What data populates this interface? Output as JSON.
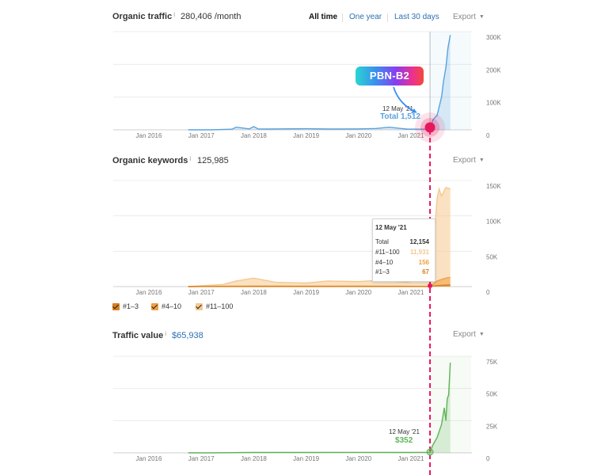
{
  "range_selector": {
    "all_time": "All time",
    "one_year": "One year",
    "last_30_days": "Last 30 days"
  },
  "export_label": "Export",
  "annotation": {
    "label": "PBN-B2",
    "colors": {
      "marker": "#e8165c",
      "dashed_line": "#e8165c"
    }
  },
  "organic_traffic": {
    "title": "Organic traffic",
    "info": "i",
    "value": "280,406 /month",
    "tooltip_date": "12 May '21",
    "tooltip_text": "Total 1,512"
  },
  "organic_keywords": {
    "title": "Organic keywords",
    "info": "i",
    "value": "125,985",
    "tooltip": {
      "date": "12 May '21",
      "rows": [
        {
          "label": "Total",
          "value": "12,154",
          "color": "#333333"
        },
        {
          "label": "#11–100",
          "value": "11,931",
          "color": "#f5c88f"
        },
        {
          "label": "#4–10",
          "value": "156",
          "color": "#f0a040"
        },
        {
          "label": "#1–3",
          "value": "67",
          "color": "#d8801e"
        }
      ]
    },
    "legend": [
      {
        "label": "#1–3",
        "color": "#d8801e"
      },
      {
        "label": "#4–10",
        "color": "#f0a040"
      },
      {
        "label": "#11–100",
        "color": "#f5c88f"
      }
    ]
  },
  "traffic_value": {
    "title": "Traffic value",
    "info": "i",
    "value": "$65,938",
    "tooltip_date": "12 May '21",
    "tooltip_value": "$352"
  },
  "chart_data": [
    {
      "type": "area",
      "x_ticks": [
        "Jan 2016",
        "Jan 2017",
        "Jan 2018",
        "Jan 2019",
        "Jan 2020",
        "Jan 2021"
      ],
      "y_ticks": [
        "300K",
        "200K",
        "100K",
        "0"
      ],
      "ylim": [
        0,
        300000
      ],
      "color": "#5aa2dd",
      "x": [
        "2016-10",
        "2017-03",
        "2017-08",
        "2017-09",
        "2017-12",
        "2018-01",
        "2018-02",
        "2018-04",
        "2018-07",
        "2019-01",
        "2019-07",
        "2020-01",
        "2020-05",
        "2020-08",
        "2020-12",
        "2021-03",
        "2021-05",
        "2021-05-12",
        "2021-06",
        "2021-07",
        "2021-08",
        "2021-08-15",
        "2021-09",
        "2021-09-15",
        "2021-10"
      ],
      "values": [
        0,
        0,
        2000,
        8000,
        3000,
        10000,
        3000,
        2500,
        3000,
        3500,
        2500,
        3000,
        4000,
        8000,
        2500,
        2000,
        2500,
        1512,
        30000,
        45000,
        100000,
        150000,
        190000,
        250000,
        290000
      ]
    },
    {
      "type": "area",
      "x_ticks": [
        "Jan 2016",
        "Jan 2017",
        "Jan 2018",
        "Jan 2019",
        "Jan 2020",
        "Jan 2021"
      ],
      "y_ticks": [
        "150K",
        "100K",
        "50K",
        "0"
      ],
      "ylim": [
        0,
        150000
      ],
      "series": [
        {
          "name": "#11–100",
          "color": "#f5c88f",
          "x": [
            "2016-10",
            "2017-06",
            "2017-09",
            "2018-01",
            "2018-06",
            "2019-01",
            "2019-06",
            "2020-01",
            "2020-06",
            "2020-12",
            "2021-05-12",
            "2021-06",
            "2021-07",
            "2021-07-15",
            "2021-08",
            "2021-09",
            "2021-10"
          ],
          "values": [
            0,
            3000,
            8000,
            12000,
            6000,
            5000,
            8000,
            7000,
            9000,
            6000,
            11931,
            45000,
            125000,
            138000,
            128000,
            140000,
            138000
          ]
        },
        {
          "name": "#4–10",
          "color": "#f0a040",
          "x": [
            "2016-10",
            "2017-06",
            "2018-01",
            "2019-01",
            "2020-01",
            "2020-12",
            "2021-05-12",
            "2021-07",
            "2021-09",
            "2021-10"
          ],
          "values": [
            0,
            500,
            800,
            600,
            700,
            500,
            156,
            8000,
            12000,
            13000
          ]
        },
        {
          "name": "#1–3",
          "color": "#d8801e",
          "x": [
            "2016-10",
            "2017-06",
            "2018-01",
            "2019-01",
            "2020-01",
            "2021-05-12",
            "2021-07",
            "2021-10"
          ],
          "values": [
            0,
            100,
            150,
            120,
            130,
            67,
            1500,
            2500
          ]
        }
      ]
    },
    {
      "type": "area",
      "x_ticks": [
        "Jan 2016",
        "Jan 2017",
        "Jan 2018",
        "Jan 2019",
        "Jan 2020",
        "Jan 2021"
      ],
      "y_ticks": [
        "75K",
        "50K",
        "25K",
        "0"
      ],
      "ylim": [
        0,
        75000
      ],
      "color": "#5fb35a",
      "x": [
        "2016-10",
        "2017-03",
        "2018-01",
        "2019-01",
        "2020-01",
        "2020-12",
        "2021-05-12",
        "2021-06",
        "2021-07",
        "2021-08",
        "2021-08-20",
        "2021-09",
        "2021-09-10",
        "2021-09-20",
        "2021-10"
      ],
      "values": [
        0,
        0,
        300,
        300,
        350,
        300,
        352,
        6000,
        12000,
        22000,
        35000,
        25000,
        42000,
        45000,
        70000
      ]
    }
  ]
}
